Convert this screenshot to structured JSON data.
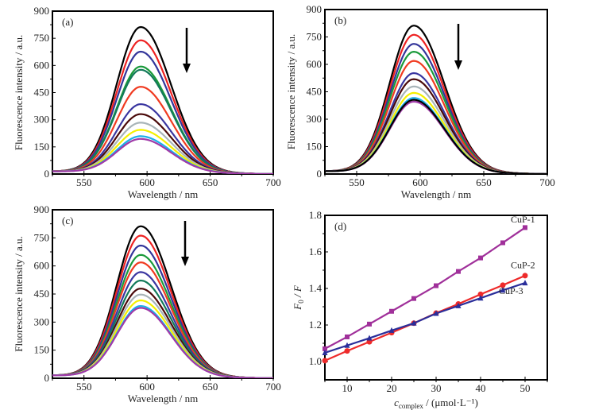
{
  "chart_data": [
    {
      "type": "line",
      "panel_label": "(a)",
      "title": "",
      "xlabel": "Wavelength / nm",
      "ylabel": "Fluorescence intensity / a.u.",
      "xlim": [
        525,
        700
      ],
      "ylim": [
        0,
        900
      ],
      "xticks": [
        550,
        600,
        650,
        700
      ],
      "yticks": [
        0,
        150,
        300,
        450,
        600,
        750,
        900
      ],
      "peak_wavelength": 595,
      "annotation": "downward arrow: intensity decreases",
      "series": [
        {
          "color": "#000000",
          "peak": 808
        },
        {
          "color": "#ee2222",
          "peak": 735
        },
        {
          "color": "#33359a",
          "peak": 672
        },
        {
          "color": "#1a9a3a",
          "peak": 590
        },
        {
          "color": "#137a5a",
          "peak": 572
        },
        {
          "color": "#f03a20",
          "peak": 478
        },
        {
          "color": "#3a36a0",
          "peak": 382
        },
        {
          "color": "#4a0a0a",
          "peak": 327
        },
        {
          "color": "#a8b4b8",
          "peak": 280
        },
        {
          "color": "#f4f000",
          "peak": 240
        },
        {
          "color": "#1ab0e8",
          "peak": 205
        },
        {
          "color": "#a03aa8",
          "peak": 190
        }
      ]
    },
    {
      "type": "line",
      "panel_label": "(b)",
      "title": "",
      "xlabel": "Wavelength / nm",
      "ylabel": "Fluorescence intensity / a.u.",
      "xlim": [
        525,
        700
      ],
      "ylim": [
        0,
        900
      ],
      "xticks": [
        550,
        600,
        650,
        700
      ],
      "yticks": [
        0,
        150,
        300,
        450,
        600,
        750,
        900
      ],
      "peak_wavelength": 595,
      "annotation": "downward arrow: intensity decreases",
      "series": [
        {
          "color": "#000000",
          "peak": 808
        },
        {
          "color": "#ee2222",
          "peak": 758
        },
        {
          "color": "#33359a",
          "peak": 708
        },
        {
          "color": "#1a9a3a",
          "peak": 665
        },
        {
          "color": "#f03a20",
          "peak": 615
        },
        {
          "color": "#3a36a0",
          "peak": 548
        },
        {
          "color": "#4a0a0a",
          "peak": 515
        },
        {
          "color": "#a8b4b8",
          "peak": 475
        },
        {
          "color": "#f4f000",
          "peak": 440
        },
        {
          "color": "#1ab0e8",
          "peak": 412
        },
        {
          "color": "#a03aa8",
          "peak": 392
        },
        {
          "color": "#000000",
          "peak": 402
        }
      ]
    },
    {
      "type": "line",
      "panel_label": "(c)",
      "title": "",
      "xlabel": "Wavelength / nm",
      "ylabel": "Fluorescence intensity / a.u.",
      "xlim": [
        525,
        700
      ],
      "ylim": [
        0,
        900
      ],
      "xticks": [
        550,
        600,
        650,
        700
      ],
      "yticks": [
        0,
        150,
        300,
        450,
        600,
        750,
        900
      ],
      "peak_wavelength": 595,
      "annotation": "downward arrow: intensity decreases",
      "series": [
        {
          "color": "#000000",
          "peak": 808
        },
        {
          "color": "#ee2222",
          "peak": 758
        },
        {
          "color": "#33359a",
          "peak": 705
        },
        {
          "color": "#1a9a3a",
          "peak": 655
        },
        {
          "color": "#f03a20",
          "peak": 615
        },
        {
          "color": "#3a36a0",
          "peak": 563
        },
        {
          "color": "#137a5a",
          "peak": 518
        },
        {
          "color": "#4a0a0a",
          "peak": 475
        },
        {
          "color": "#a8b4b8",
          "peak": 443
        },
        {
          "color": "#f4f000",
          "peak": 412
        },
        {
          "color": "#1ab0e8",
          "peak": 382
        },
        {
          "color": "#a03aa8",
          "peak": 372
        }
      ]
    },
    {
      "type": "line",
      "panel_label": "(d)",
      "title": "",
      "xlabel_main": "c",
      "xlabel_sub": "complex",
      "xlabel_unit": " / (μmol·L⁻¹)",
      "ylabel_main": "F",
      "ylabel_sub": "0",
      "ylabel_rest": " / F",
      "xlim": [
        5,
        55
      ],
      "ylim": [
        0.9,
        1.8
      ],
      "xticks": [
        10,
        20,
        30,
        40,
        50
      ],
      "yticks": [
        1.0,
        1.2,
        1.4,
        1.6,
        1.8
      ],
      "ytick_labels": [
        "1.0",
        "1.2",
        "1.4",
        "1.6",
        "1.8"
      ],
      "x": [
        5,
        10,
        15,
        20,
        25,
        30,
        35,
        40,
        45,
        50
      ],
      "series": [
        {
          "name": "CuP-1",
          "color": "#a0309a",
          "marker": "square",
          "values": [
            1.07,
            1.135,
            1.205,
            1.275,
            1.345,
            1.415,
            1.493,
            1.567,
            1.65,
            1.733
          ]
        },
        {
          "name": "CuP-2",
          "color": "#ee2a2a",
          "marker": "circle",
          "values": [
            1.005,
            1.058,
            1.108,
            1.158,
            1.21,
            1.265,
            1.315,
            1.368,
            1.418,
            1.47
          ]
        },
        {
          "name": "CuP-3",
          "color": "#2a2e9a",
          "marker": "triangle",
          "values": [
            1.048,
            1.088,
            1.128,
            1.17,
            1.21,
            1.263,
            1.305,
            1.347,
            1.39,
            1.43
          ]
        }
      ]
    }
  ]
}
